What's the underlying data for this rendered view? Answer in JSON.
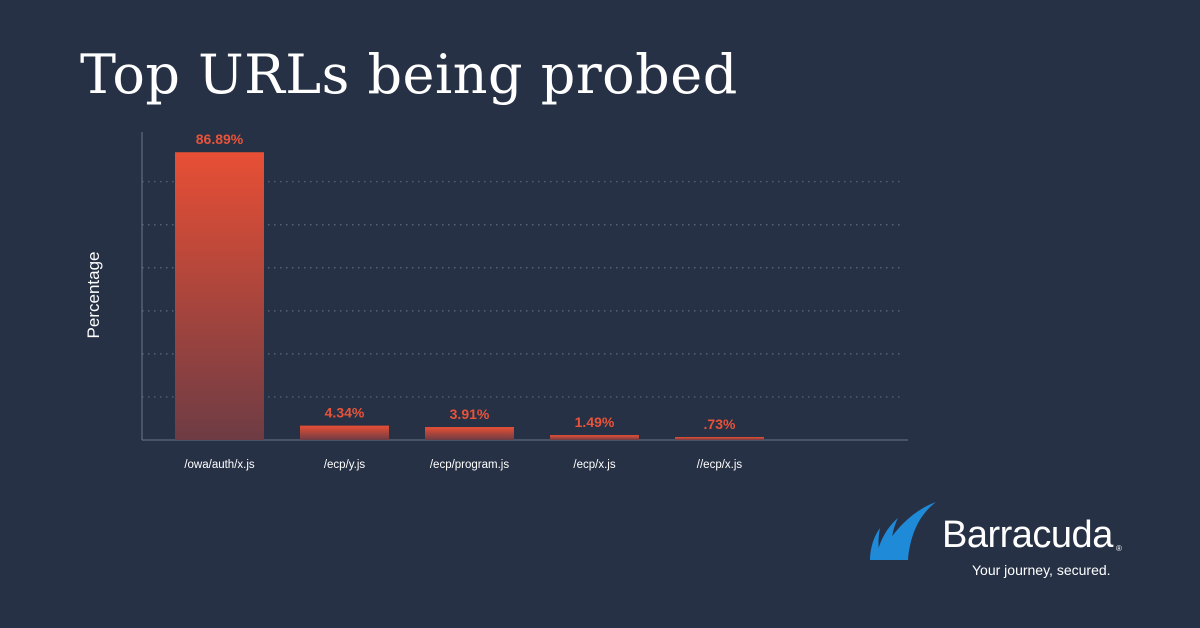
{
  "title": "Top URLs being probed",
  "chart_data": {
    "type": "bar",
    "ylabel": "Percentage",
    "xlabel": "",
    "categories": [
      "/owa/auth/x.js",
      "/ecp/y.js",
      "/ecp/program.js",
      "/ecp/x.js",
      "//ecp/x.js"
    ],
    "values": [
      86.89,
      4.34,
      3.91,
      1.49,
      0.73
    ],
    "value_labels": [
      "86.89%",
      "4.34%",
      "3.91%",
      "1.49%",
      ".73%"
    ],
    "ylim": [
      0,
      93
    ],
    "grid": true,
    "grid_values": [
      13,
      26,
      39,
      52,
      65,
      78
    ]
  },
  "colors": {
    "background": "#263145",
    "bar_top": "#e84f35",
    "bar_bottom": "#6e3c44",
    "value_label": "#e8533a",
    "axis": "#6f7889",
    "grid": "#5f6a7d",
    "text": "#ffffff",
    "brand_blue": "#1f8ad8"
  },
  "brand": {
    "name": "Barracuda",
    "registered": "®",
    "tagline": "Your journey, secured.",
    "logo_icon": "shark-fin-icon"
  }
}
